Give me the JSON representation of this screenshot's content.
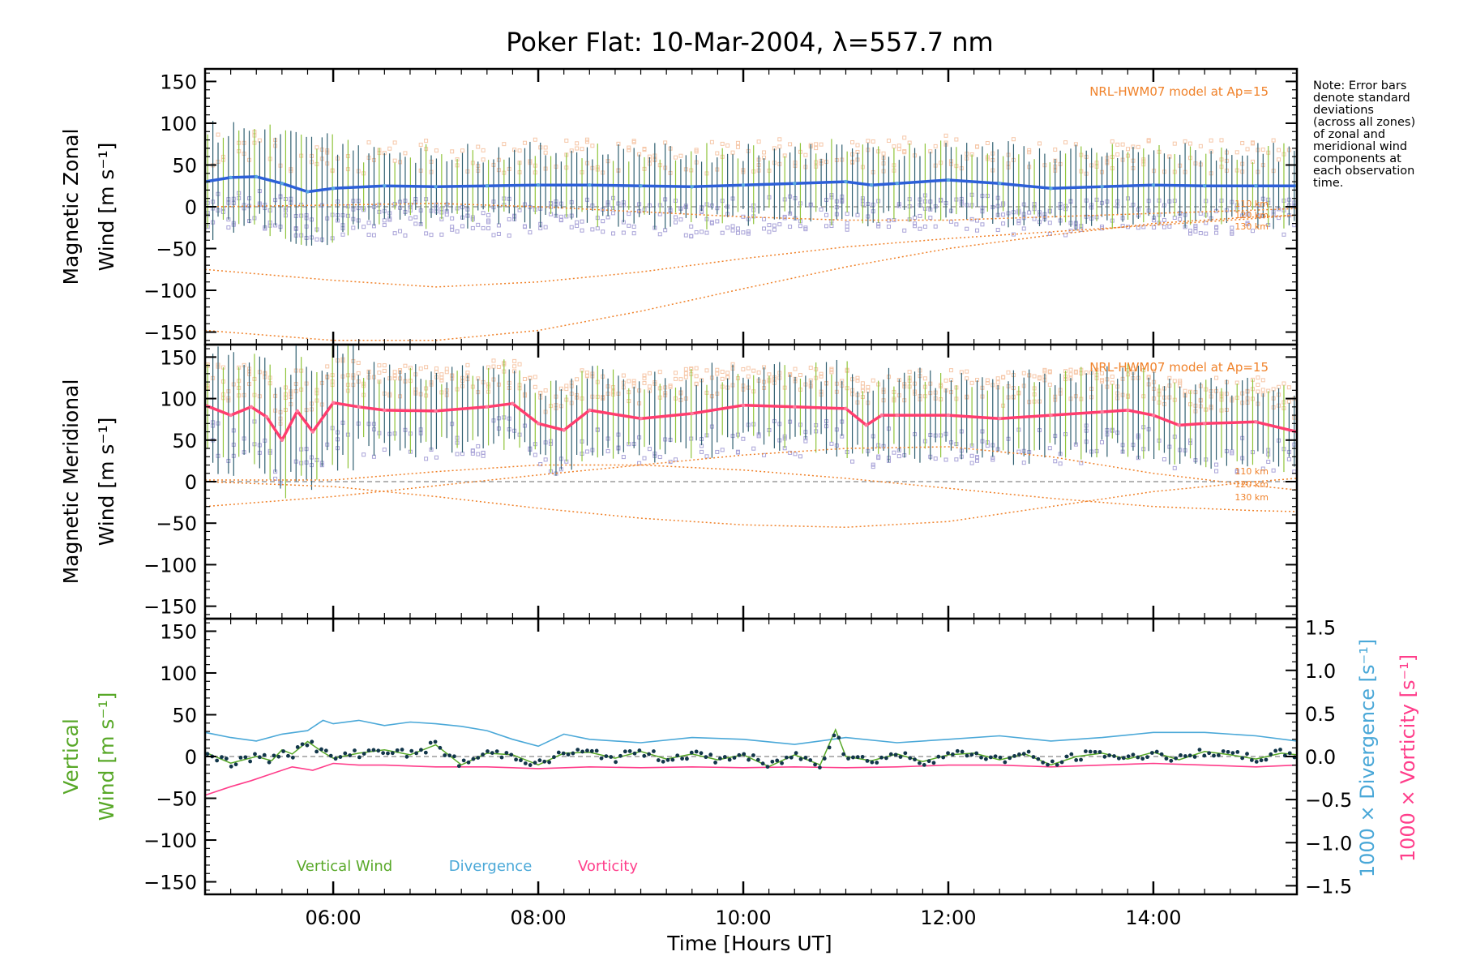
{
  "title": "Poker Flat: 10-Mar-2004, λ=557.7 nm",
  "note": [
    "Note: Error bars",
    "denote standard",
    "deviations",
    "(across all zones)",
    "of zonal and",
    "meridional wind",
    "components at",
    "each observation",
    "time."
  ],
  "colors": {
    "zonal": "#2c5fd8",
    "zonal_light": "#5aa8e0",
    "meridional": "#ff3d6e",
    "model": "#f0822a",
    "errorbar": "#2f5f70",
    "scatter": "#a9a3d8",
    "vertical": "#58a828",
    "divergence": "#4aa8d8",
    "vorticity": "#ff3d8a",
    "dots": "#12364a"
  },
  "chart_data": [
    {
      "type": "line",
      "panel": "zonal",
      "title": "Poker Flat: 10-Mar-2004, λ=557.7 nm",
      "ylabel_line1": "Magnetic Zonal",
      "ylabel_line2": "Wind [m s⁻¹]",
      "ylim": [
        -165,
        165
      ],
      "yticks": [
        -150,
        -100,
        -50,
        0,
        50,
        100,
        150
      ],
      "xlim": [
        4.75,
        15.4
      ],
      "model_label": "NRL-HWM07 model at Ap=15",
      "altitude_labels": [
        "110 km",
        "120 km",
        "130 km"
      ],
      "errorbar_sd_approx": 40,
      "series": [
        {
          "name": "Zonal wind",
          "x": [
            4.75,
            5.0,
            5.25,
            5.5,
            5.75,
            6.0,
            6.5,
            7.0,
            7.5,
            8.0,
            8.5,
            9.0,
            9.5,
            10.0,
            10.5,
            11.0,
            11.25,
            11.5,
            12.0,
            12.5,
            13.0,
            13.5,
            14.0,
            14.5,
            15.0,
            15.4
          ],
          "y": [
            30,
            35,
            36,
            28,
            18,
            22,
            25,
            24,
            25,
            26,
            26,
            25,
            24,
            26,
            28,
            30,
            26,
            28,
            32,
            28,
            22,
            24,
            26,
            25,
            25,
            25
          ]
        },
        {
          "name": "HWM07 110 km",
          "x": [
            4.75,
            6.0,
            7.0,
            8.0,
            9.0,
            10.0,
            11.0,
            12.0,
            13.0,
            14.0,
            15.0,
            15.4
          ],
          "y": [
            -75,
            -88,
            -96,
            -90,
            -78,
            -62,
            -48,
            -38,
            -30,
            -22,
            -14,
            -10
          ]
        },
        {
          "name": "HWM07 120 km",
          "x": [
            4.75,
            6.0,
            7.0,
            8.0,
            9.0,
            10.0,
            11.0,
            12.0,
            13.0,
            14.0,
            15.0,
            15.4
          ],
          "y": [
            -148,
            -160,
            -160,
            -148,
            -125,
            -98,
            -72,
            -50,
            -34,
            -20,
            -12,
            -10
          ]
        },
        {
          "name": "HWM07 130 km",
          "x": [
            4.75,
            6.0,
            7.0,
            8.0,
            9.0,
            10.0,
            11.0,
            12.0,
            13.0,
            14.0,
            15.0,
            15.4
          ],
          "y": [
            0,
            2,
            4,
            0,
            -6,
            -12,
            -16,
            -16,
            -12,
            -8,
            -4,
            -2
          ]
        }
      ]
    },
    {
      "type": "line",
      "panel": "meridional",
      "ylabel_line1": "Magnetic Meridional",
      "ylabel_line2": "Wind [m s⁻¹]",
      "ylim": [
        -165,
        165
      ],
      "yticks": [
        -150,
        -100,
        -50,
        0,
        50,
        100,
        150
      ],
      "xlim": [
        4.75,
        15.4
      ],
      "model_label": "NRL-HWM07 model at Ap=15",
      "altitude_labels": [
        "110 km",
        "120 km",
        "130 km"
      ],
      "errorbar_sd_approx": 45,
      "series": [
        {
          "name": "Meridional wind",
          "x": [
            4.75,
            5.0,
            5.2,
            5.35,
            5.5,
            5.65,
            5.8,
            6.0,
            6.25,
            6.5,
            7.0,
            7.5,
            7.75,
            8.0,
            8.25,
            8.5,
            9.0,
            9.5,
            10.0,
            10.5,
            11.0,
            11.2,
            11.35,
            11.5,
            12.0,
            12.5,
            13.0,
            13.5,
            13.75,
            14.0,
            14.25,
            14.5,
            15.0,
            15.4
          ],
          "y": [
            92,
            80,
            90,
            78,
            50,
            85,
            60,
            95,
            90,
            86,
            85,
            90,
            94,
            70,
            62,
            86,
            76,
            82,
            92,
            90,
            88,
            68,
            80,
            80,
            80,
            76,
            80,
            84,
            86,
            80,
            68,
            70,
            72,
            60
          ]
        },
        {
          "name": "HWM07 110 km",
          "x": [
            4.75,
            6.0,
            7.0,
            8.0,
            9.0,
            10.0,
            11.0,
            12.0,
            13.0,
            14.0,
            15.0,
            15.4
          ],
          "y": [
            2,
            2,
            12,
            20,
            20,
            14,
            4,
            -8,
            -20,
            -30,
            -35,
            -36
          ]
        },
        {
          "name": "HWM07 120 km",
          "x": [
            4.75,
            6.0,
            7.0,
            8.0,
            9.0,
            10.0,
            11.0,
            12.0,
            13.0,
            14.0,
            15.0,
            15.4
          ],
          "y": [
            -30,
            -18,
            -5,
            8,
            20,
            32,
            40,
            42,
            30,
            10,
            -5,
            -10
          ]
        },
        {
          "name": "HWM07 130 km",
          "x": [
            4.75,
            6.0,
            7.0,
            8.0,
            9.0,
            10.0,
            11.0,
            12.0,
            13.0,
            14.0,
            15.0,
            15.4
          ],
          "y": [
            0,
            -6,
            -18,
            -32,
            -44,
            -52,
            -55,
            -48,
            -30,
            -12,
            0,
            4
          ]
        }
      ]
    },
    {
      "type": "line",
      "panel": "vertical",
      "ylabel_line1": "Vertical",
      "ylabel_line2": "Wind [m s⁻¹]",
      "ylim": [
        -165,
        165
      ],
      "yticks": [
        -150,
        -100,
        -50,
        0,
        50,
        100,
        150
      ],
      "xlim": [
        4.75,
        15.4
      ],
      "xticks": [
        6,
        8,
        10,
        12,
        14
      ],
      "xtick_labels": [
        "06:00",
        "08:00",
        "10:00",
        "12:00",
        "14:00"
      ],
      "xlabel": "Time [Hours UT]",
      "y2label_div": "1000 × Divergence [s⁻¹]",
      "y2label_vort": "1000 × Vorticity [s⁻¹]",
      "y2lim": [
        -1.6,
        1.6
      ],
      "y2ticks": [
        -1.5,
        -1.0,
        -0.5,
        0.0,
        0.5,
        1.0,
        1.5
      ],
      "y2tick_labels": [
        "−1.5",
        "−1.0",
        "−0.5",
        "0.0",
        "0.5",
        "1.0",
        "1.5"
      ],
      "legend": [
        "Vertical Wind",
        "Divergence",
        "Vorticity"
      ],
      "series": [
        {
          "name": "Vertical Wind",
          "x": [
            4.75,
            5.0,
            5.25,
            5.4,
            5.5,
            5.6,
            5.75,
            5.9,
            6.0,
            6.25,
            6.5,
            6.75,
            7.0,
            7.25,
            7.5,
            7.75,
            8.0,
            8.25,
            8.5,
            8.75,
            9.0,
            9.25,
            9.5,
            9.75,
            10.0,
            10.25,
            10.5,
            10.75,
            10.9,
            11.0,
            11.25,
            11.5,
            11.75,
            12.0,
            12.25,
            12.5,
            12.75,
            13.0,
            13.25,
            13.5,
            13.75,
            14.0,
            14.25,
            14.5,
            14.75,
            15.0,
            15.25,
            15.4
          ],
          "y": [
            5,
            -8,
            0,
            -5,
            8,
            3,
            18,
            5,
            -2,
            4,
            8,
            2,
            14,
            -10,
            4,
            2,
            -10,
            4,
            5,
            -2,
            6,
            -3,
            3,
            -4,
            2,
            -12,
            2,
            -10,
            32,
            0,
            -5,
            3,
            -6,
            2,
            4,
            -4,
            3,
            -10,
            0,
            4,
            -3,
            5,
            -4,
            6,
            2,
            -3,
            4,
            2
          ]
        },
        {
          "name": "Divergence",
          "x": [
            4.75,
            5.0,
            5.25,
            5.5,
            5.75,
            5.9,
            6.0,
            6.25,
            6.5,
            6.75,
            7.0,
            7.25,
            7.5,
            7.75,
            8.0,
            8.25,
            8.5,
            9.0,
            9.5,
            10.0,
            10.5,
            11.0,
            11.5,
            12.0,
            12.5,
            13.0,
            13.5,
            14.0,
            14.5,
            15.0,
            15.4
          ],
          "y": [
            0.28,
            0.22,
            0.18,
            0.26,
            0.3,
            0.42,
            0.38,
            0.42,
            0.36,
            0.4,
            0.38,
            0.35,
            0.3,
            0.2,
            0.12,
            0.26,
            0.2,
            0.16,
            0.22,
            0.2,
            0.14,
            0.22,
            0.16,
            0.2,
            0.24,
            0.18,
            0.22,
            0.28,
            0.28,
            0.24,
            0.18
          ]
        },
        {
          "name": "Vorticity",
          "x": [
            4.75,
            5.0,
            5.2,
            5.4,
            5.6,
            5.8,
            6.0,
            6.25,
            6.5,
            7.0,
            7.5,
            8.0,
            8.5,
            9.0,
            9.5,
            10.0,
            10.5,
            11.0,
            11.5,
            12.0,
            12.5,
            13.0,
            13.5,
            14.0,
            14.5,
            15.0,
            15.4
          ],
          "y": [
            -0.45,
            -0.35,
            -0.28,
            -0.2,
            -0.12,
            -0.16,
            -0.08,
            -0.1,
            -0.1,
            -0.12,
            -0.12,
            -0.14,
            -0.12,
            -0.13,
            -0.12,
            -0.13,
            -0.12,
            -0.13,
            -0.12,
            -0.1,
            -0.1,
            -0.12,
            -0.1,
            -0.08,
            -0.1,
            -0.12,
            -0.1
          ]
        }
      ]
    }
  ]
}
